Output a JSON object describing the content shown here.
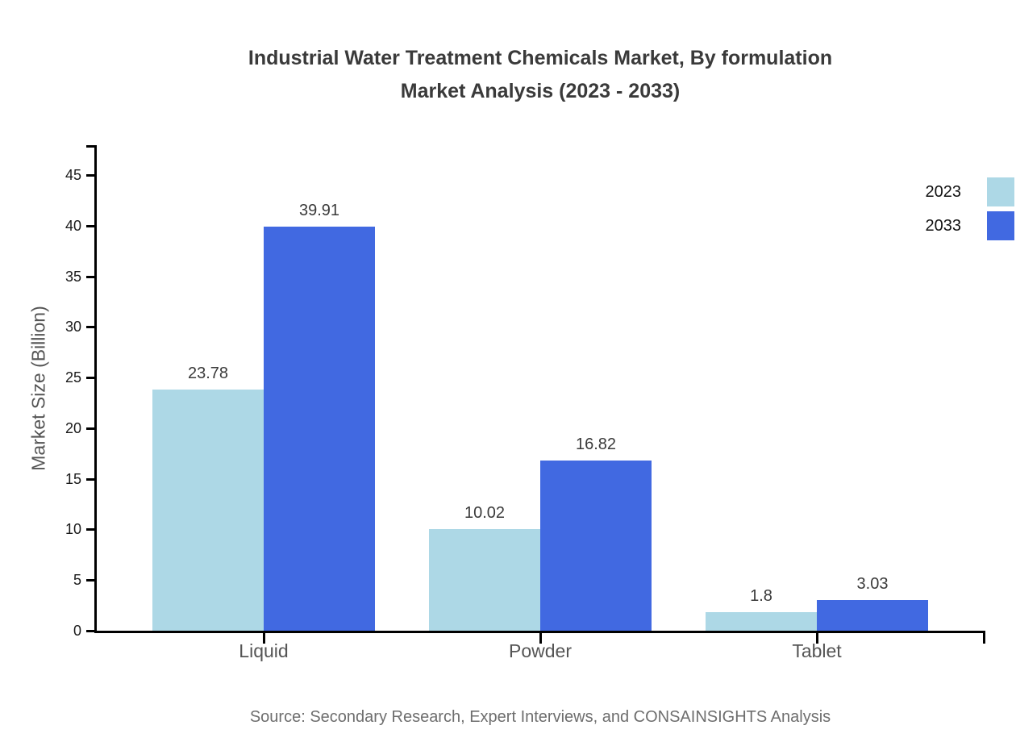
{
  "title": {
    "line1": "Industrial Water Treatment Chemicals Market, By formulation",
    "line2": "Market Analysis (2023 - 2033)"
  },
  "y_axis": {
    "label": "Market Size (Billion)",
    "ticks": [
      0,
      5,
      10,
      15,
      20,
      25,
      30,
      35,
      40,
      45
    ]
  },
  "legend": [
    {
      "label": "2023",
      "color": "#ADD8E6"
    },
    {
      "label": "2033",
      "color": "#4169E1"
    }
  ],
  "source": "Source: Secondary Research, Expert Interviews, and CONSAINSIGHTS Analysis",
  "colors": {
    "series_2023": "#ADD8E6",
    "series_2033": "#4169E1",
    "axis": "#000000",
    "title_text": "#3a3a3a",
    "muted_text": "#555555",
    "source_text": "#6e6e6e"
  },
  "chart_data": {
    "type": "bar",
    "categories": [
      "Liquid",
      "Powder",
      "Tablet"
    ],
    "series": [
      {
        "name": "2023",
        "color": "#ADD8E6",
        "values": [
          23.78,
          10.02,
          1.8
        ]
      },
      {
        "name": "2033",
        "color": "#4169E1",
        "values": [
          39.91,
          16.82,
          3.03
        ]
      }
    ],
    "value_labels": [
      "23.78",
      "39.91",
      "10.02",
      "16.82",
      "1.8",
      "3.03"
    ],
    "title": "Industrial Water Treatment Chemicals Market, By formulation Market Analysis (2023 - 2033)",
    "xlabel": "",
    "ylabel": "Market Size (Billion)",
    "ylim": [
      0,
      48
    ],
    "ytick_step": 5,
    "grid": false,
    "legend_position": "upper-right",
    "bar_value_labels_shown": true
  }
}
